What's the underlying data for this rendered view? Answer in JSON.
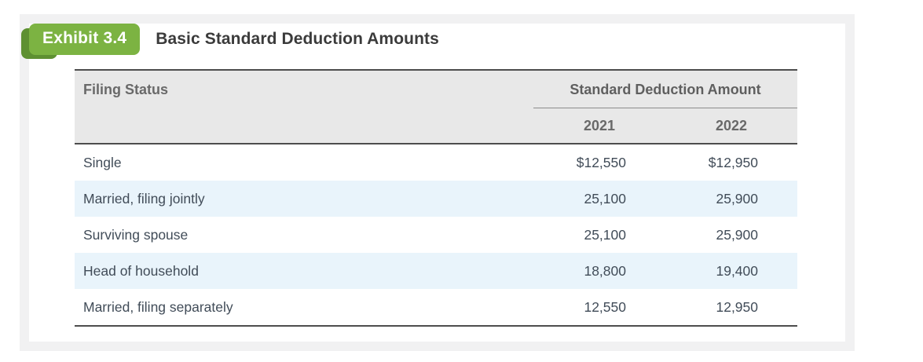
{
  "exhibit": {
    "label": "Exhibit 3.4",
    "title": "Basic Standard Deduction Amounts"
  },
  "table": {
    "filing_status_header": "Filing Status",
    "amount_group_header": "Standard Deduction Amount",
    "year_headers": [
      "2021",
      "2022"
    ],
    "rows": [
      {
        "label": "Single",
        "y2021": "$12,550",
        "y2022": "$12,950"
      },
      {
        "label": "Married, filing jointly",
        "y2021": "25,100",
        "y2022": "25,900"
      },
      {
        "label": "Surviving spouse",
        "y2021": "25,100",
        "y2022": "25,900"
      },
      {
        "label": "Head of household",
        "y2021": "18,800",
        "y2022": "19,400"
      },
      {
        "label": "Married, filing separately",
        "y2021": "12,550",
        "y2022": "12,950"
      }
    ]
  },
  "colors": {
    "badge_green": "#7cb342",
    "badge_dark_green": "#5e9032",
    "panel_frame_gray": "#f1f1f2",
    "header_bg": "#e8e8e8",
    "stripe_blue": "#e9f4fb",
    "rule_dark": "#4d4d4d",
    "body_text": "#414c58",
    "header_text": "#696969"
  }
}
